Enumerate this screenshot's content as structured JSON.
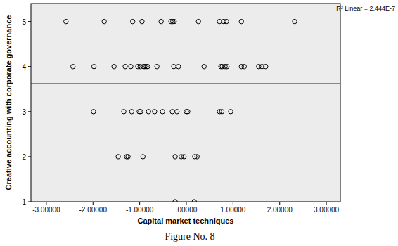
{
  "chart_data": {
    "type": "scatter",
    "title": "Figure No. 8",
    "x_label": "Capital market techniques",
    "y_label": "Creative accounting with corporate governance",
    "annotations": [
      "R² Linear = 2.444E-7"
    ],
    "xlim": [
      -3.33,
      3.3
    ],
    "ylim": [
      1,
      5.4
    ],
    "xticks": [
      {
        "value": -3,
        "label": "-3.00000"
      },
      {
        "value": -2,
        "label": "-2.00000"
      },
      {
        "value": -1,
        "label": "-1.00000"
      },
      {
        "value": 0,
        "label": ".00000"
      },
      {
        "value": 1,
        "label": "1.00000"
      },
      {
        "value": 2,
        "label": "2.00000"
      },
      {
        "value": 3,
        "label": "3.00000"
      }
    ],
    "yticks": [
      1,
      2,
      3,
      4,
      5
    ],
    "grid": false,
    "series": [
      {
        "type": "scatter",
        "marker": "circle",
        "color": "#000000",
        "x": [
          -2.58,
          -1.76,
          -1.15,
          -0.95,
          -0.54,
          -0.33,
          -0.29,
          -0.26,
          0.26,
          0.71,
          0.8,
          0.86,
          1.18,
          2.32,
          -2.43,
          -1.98,
          -1.55,
          -1.31,
          -1.19,
          -1.04,
          -0.99,
          -0.92,
          -0.89,
          -0.86,
          -0.83,
          -0.63,
          -0.27,
          -0.17,
          0.38,
          0.74,
          0.77,
          0.83,
          0.87,
          1.18,
          1.24,
          1.55,
          1.62,
          1.7,
          -1.99,
          -1.34,
          -1.17,
          -1.01,
          -0.98,
          -0.81,
          -0.68,
          -0.51,
          -0.3,
          -0.2,
          0.0,
          0.03,
          0.71,
          0.76,
          0.95,
          -1.46,
          -1.28,
          -1.25,
          -0.93,
          -0.24,
          -0.11,
          -0.05,
          0.18,
          0.23,
          -0.24,
          0.17
        ],
        "values": [
          5,
          5,
          5,
          5,
          5,
          5,
          5,
          5,
          5,
          5,
          5,
          5,
          5,
          5,
          4,
          4,
          4,
          4,
          4,
          4,
          4,
          4,
          4,
          4,
          4,
          4,
          4,
          4,
          4,
          4,
          4,
          4,
          4,
          4,
          4,
          4,
          4,
          4,
          3,
          3,
          3,
          3,
          3,
          3,
          3,
          3,
          3,
          3,
          3,
          3,
          3,
          3,
          3,
          2,
          2,
          2,
          2,
          2,
          2,
          2,
          2,
          2,
          1,
          1
        ]
      },
      {
        "type": "line",
        "line_style": "solid",
        "color": "#000000",
        "x": [
          -3.33,
          3.3
        ],
        "values": [
          3.62,
          3.62
        ]
      }
    ]
  }
}
